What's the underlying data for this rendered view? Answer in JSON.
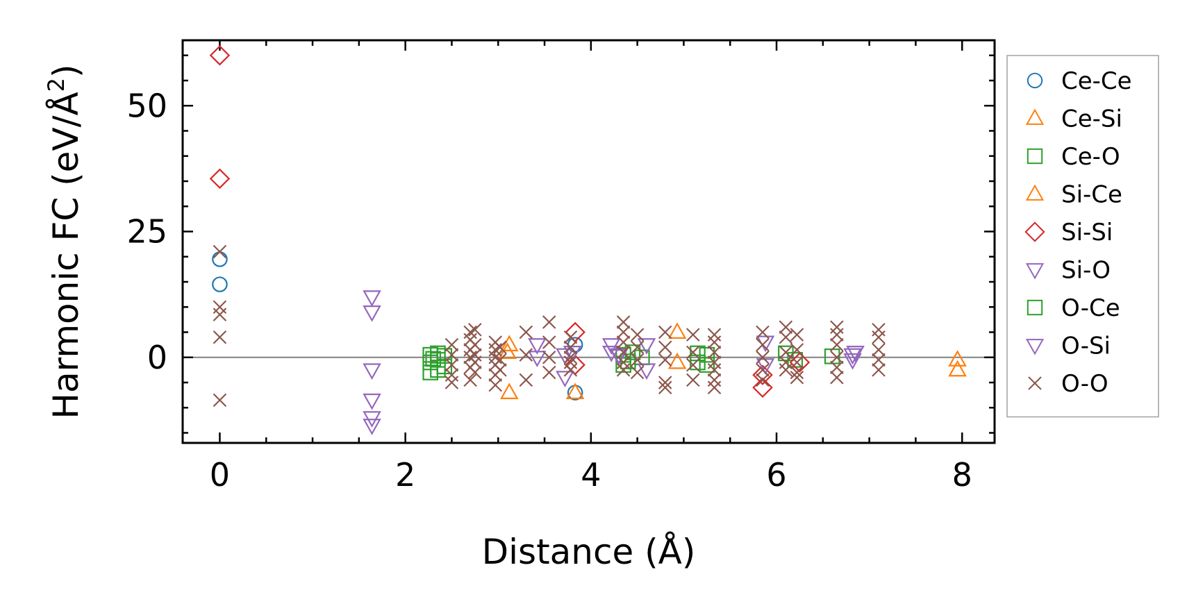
{
  "chart_data": {
    "type": "scatter",
    "xlabel": "Distance (Å)",
    "ylabel_prefix": "Harmonic FC (eV/Å",
    "ylabel_sup": "2",
    "ylabel_suffix": ")",
    "xlim": [
      -0.4,
      8.35
    ],
    "ylim": [
      -17,
      63
    ],
    "xticks": [
      0,
      2,
      4,
      6,
      8
    ],
    "yticks": [
      0,
      25,
      50
    ],
    "xminor_step": 0.5,
    "yminor_step": 5,
    "grid": false,
    "zero_line": true,
    "legend_position": "outside-right",
    "series": [
      {
        "name": "Ce-Ce",
        "marker": "circle",
        "color": "#1f77b4",
        "points": [
          [
            0,
            19.5
          ],
          [
            0,
            14.5
          ],
          [
            3.83,
            2.5
          ],
          [
            3.83,
            -7
          ]
        ]
      },
      {
        "name": "Ce-Si",
        "marker": "triangle-up",
        "color": "#ff7f0e",
        "points": [
          [
            3.12,
            2.5
          ],
          [
            3.12,
            -7
          ],
          [
            4.93,
            5
          ],
          [
            4.93,
            -1
          ],
          [
            7.95,
            -0.5
          ],
          [
            7.95,
            -2.5
          ]
        ]
      },
      {
        "name": "Ce-O",
        "marker": "square",
        "color": "#2ca02c",
        "points": [
          [
            2.27,
            0.5
          ],
          [
            2.27,
            -1
          ],
          [
            2.27,
            -3
          ],
          [
            2.35,
            0.8
          ],
          [
            2.35,
            -0.5
          ],
          [
            2.35,
            -2.5
          ],
          [
            2.42,
            0.3
          ],
          [
            2.42,
            -1.8
          ],
          [
            4.35,
            0.5
          ],
          [
            4.35,
            -1.5
          ],
          [
            4.45,
            1
          ],
          [
            4.55,
            0
          ],
          [
            5.15,
            0.8
          ],
          [
            5.15,
            -1
          ],
          [
            5.25,
            0.5
          ],
          [
            5.25,
            -1.5
          ],
          [
            6.1,
            0.8
          ],
          [
            6.2,
            -0.5
          ],
          [
            6.6,
            0.2
          ]
        ]
      },
      {
        "name": "Si-Ce",
        "marker": "triangle-up",
        "color": "#ff7f0e",
        "points": [
          [
            3.83,
            -7
          ],
          [
            3.1,
            1
          ]
        ]
      },
      {
        "name": "Si-Si",
        "marker": "diamond",
        "color": "#d62728",
        "points": [
          [
            0,
            60
          ],
          [
            0,
            35.5
          ],
          [
            3.83,
            5
          ],
          [
            3.83,
            -1.5
          ],
          [
            5.85,
            -3.5
          ],
          [
            5.85,
            -6
          ],
          [
            6.25,
            -1
          ]
        ]
      },
      {
        "name": "Si-O",
        "marker": "triangle-down",
        "color": "#9467bd",
        "points": [
          [
            1.64,
            12
          ],
          [
            1.64,
            9
          ],
          [
            1.64,
            -2.5
          ],
          [
            1.64,
            -8.5
          ],
          [
            1.64,
            -12
          ],
          [
            1.64,
            -13.5
          ],
          [
            3.42,
            2.5
          ],
          [
            3.42,
            0
          ],
          [
            3.72,
            0.5
          ],
          [
            3.72,
            -4
          ],
          [
            4.22,
            2.5
          ],
          [
            4.22,
            1
          ],
          [
            4.3,
            0.3
          ],
          [
            4.6,
            2.5
          ],
          [
            4.6,
            -2.5
          ],
          [
            5.88,
            3
          ],
          [
            5.88,
            -1.5
          ],
          [
            6.82,
            0.5
          ],
          [
            6.82,
            -0.5
          ]
        ]
      },
      {
        "name": "O-Ce",
        "marker": "square",
        "color": "#2ca02c",
        "points": [
          [
            2.3,
            -0.3
          ],
          [
            4.4,
            -0.8
          ]
        ]
      },
      {
        "name": "O-Si",
        "marker": "triangle-down",
        "color": "#9467bd",
        "points": [
          [
            3.8,
            1
          ],
          [
            4.3,
            0.5
          ],
          [
            6.85,
            1
          ]
        ]
      },
      {
        "name": "O-O",
        "marker": "x",
        "color": "#8c564b",
        "points": [
          [
            0,
            21
          ],
          [
            0,
            10
          ],
          [
            0,
            8.5
          ],
          [
            0,
            4
          ],
          [
            0,
            -8.5
          ],
          [
            2.5,
            2.5
          ],
          [
            2.5,
            0.5
          ],
          [
            2.5,
            -1.5
          ],
          [
            2.5,
            -3.5
          ],
          [
            2.5,
            -5
          ],
          [
            2.7,
            5
          ],
          [
            2.7,
            3.5
          ],
          [
            2.7,
            1.5
          ],
          [
            2.7,
            0
          ],
          [
            2.7,
            -2
          ],
          [
            2.7,
            -4.5
          ],
          [
            2.75,
            5.5
          ],
          [
            2.75,
            2.5
          ],
          [
            2.75,
            0.5
          ],
          [
            2.75,
            -1
          ],
          [
            2.75,
            -3
          ],
          [
            2.97,
            3
          ],
          [
            2.97,
            1.5
          ],
          [
            2.97,
            0
          ],
          [
            2.97,
            -1.5
          ],
          [
            2.97,
            -3.5
          ],
          [
            2.97,
            -5.5
          ],
          [
            3.02,
            2
          ],
          [
            3.02,
            -0.5
          ],
          [
            3.02,
            -2.5
          ],
          [
            3.3,
            5
          ],
          [
            3.3,
            0.5
          ],
          [
            3.3,
            -4.5
          ],
          [
            3.55,
            7
          ],
          [
            3.55,
            3
          ],
          [
            3.55,
            0
          ],
          [
            3.55,
            -3
          ],
          [
            3.78,
            4
          ],
          [
            3.78,
            2
          ],
          [
            3.78,
            0
          ],
          [
            3.78,
            -1
          ],
          [
            3.78,
            -2.5
          ],
          [
            4.35,
            7
          ],
          [
            4.35,
            5
          ],
          [
            4.35,
            3
          ],
          [
            4.35,
            1
          ],
          [
            4.35,
            -1
          ],
          [
            4.35,
            -2.5
          ],
          [
            4.5,
            4.5
          ],
          [
            4.5,
            2
          ],
          [
            4.5,
            -0.5
          ],
          [
            4.5,
            -3
          ],
          [
            4.8,
            5
          ],
          [
            4.8,
            2
          ],
          [
            4.8,
            -0.5
          ],
          [
            4.8,
            -5
          ],
          [
            4.8,
            -6
          ],
          [
            5.1,
            4.5
          ],
          [
            5.1,
            1
          ],
          [
            5.1,
            -1.5
          ],
          [
            5.1,
            -4.5
          ],
          [
            5.33,
            4.5
          ],
          [
            5.33,
            3
          ],
          [
            5.33,
            1
          ],
          [
            5.33,
            -1
          ],
          [
            5.33,
            -2.5
          ],
          [
            5.33,
            -4.5
          ],
          [
            5.33,
            -6
          ],
          [
            5.85,
            5
          ],
          [
            5.85,
            2.5
          ],
          [
            5.85,
            0
          ],
          [
            5.85,
            -2.5
          ],
          [
            5.85,
            -4.5
          ],
          [
            6.1,
            6
          ],
          [
            6.1,
            4
          ],
          [
            6.1,
            1
          ],
          [
            6.1,
            -1
          ],
          [
            6.1,
            -2.5
          ],
          [
            6.22,
            4.5
          ],
          [
            6.22,
            1.5
          ],
          [
            6.22,
            -1
          ],
          [
            6.22,
            -3
          ],
          [
            6.22,
            -4
          ],
          [
            6.65,
            6
          ],
          [
            6.65,
            4.5
          ],
          [
            6.65,
            2.5
          ],
          [
            6.65,
            0
          ],
          [
            6.65,
            -2
          ],
          [
            6.65,
            -4
          ],
          [
            7.1,
            5.5
          ],
          [
            7.1,
            4
          ],
          [
            7.1,
            1.5
          ],
          [
            7.1,
            -0.5
          ],
          [
            7.1,
            -2.5
          ]
        ]
      }
    ]
  }
}
